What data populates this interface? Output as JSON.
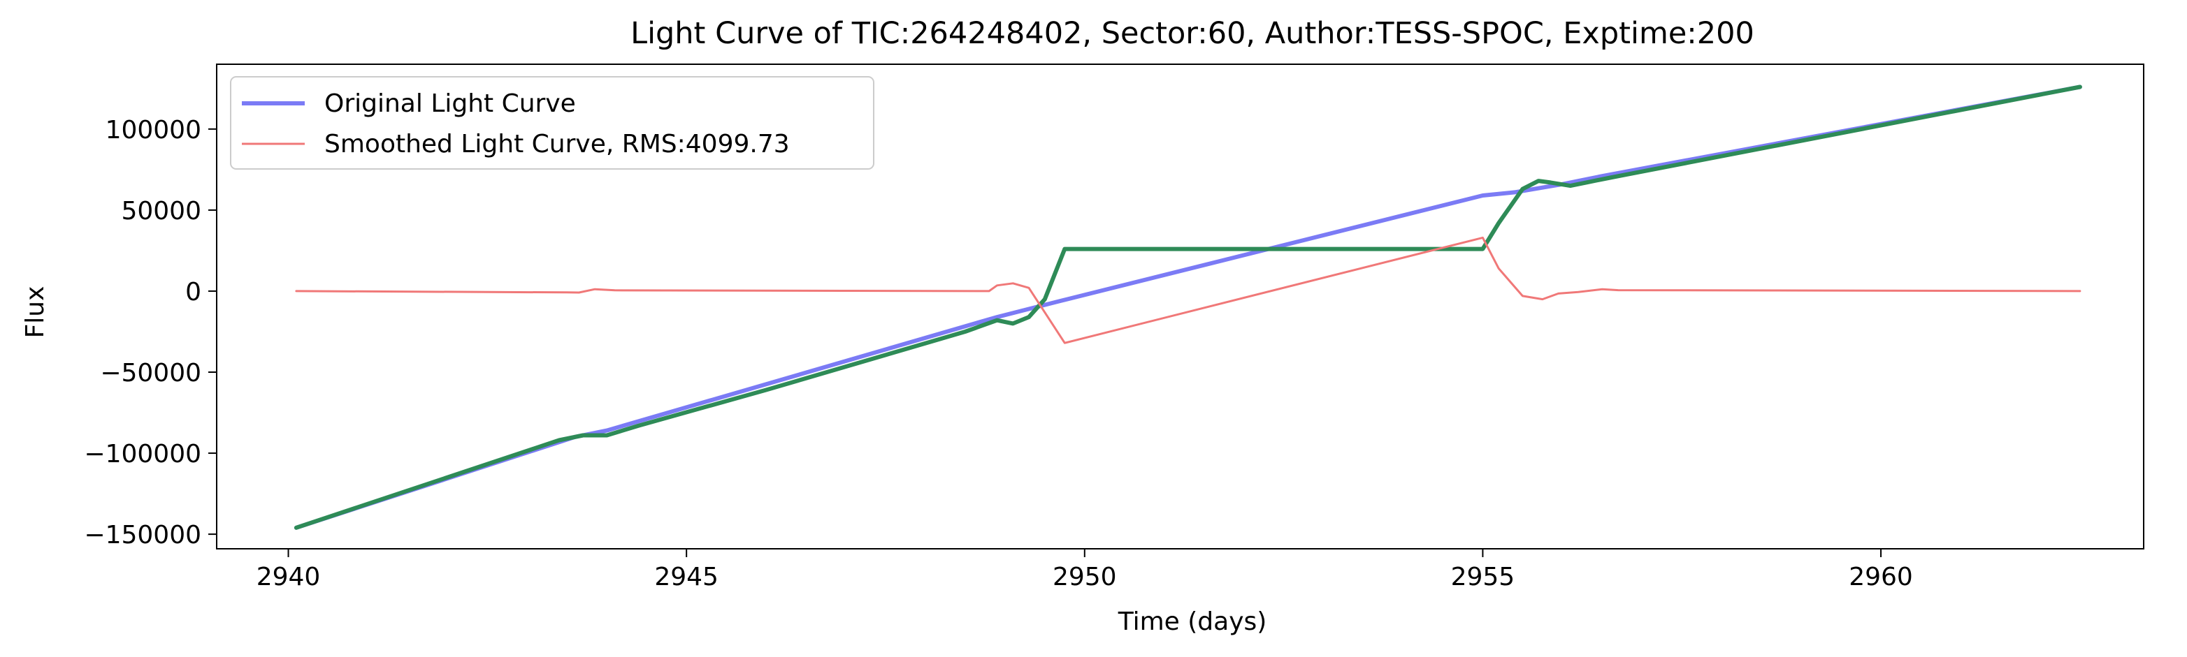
{
  "chart_data": {
    "type": "line",
    "title": "Light Curve of TIC:264248402, Sector:60, Author:TESS-SPOC, Exptime:200",
    "xlabel": "Time (days)",
    "ylabel": "Flux",
    "xlim": [
      2939.1,
      2963.3
    ],
    "ylim": [
      -159000,
      140000
    ],
    "x_ticks": [
      2940,
      2945,
      2950,
      2955,
      2960
    ],
    "x_tick_labels": [
      "2940",
      "2945",
      "2950",
      "2955",
      "2960"
    ],
    "y_ticks": [
      -150000,
      -100000,
      -50000,
      0,
      50000,
      100000
    ],
    "y_tick_labels": [
      "−150000",
      "−100000",
      "−50000",
      "0",
      "50000",
      "100000"
    ],
    "grid": false,
    "legend_position": "upper-left",
    "series": [
      {
        "name": "Original Light Curve",
        "color": "#7b7bf5",
        "x": [
          2940.1,
          2943.6,
          2944.0,
          2948.9,
          2949.3,
          2949.7,
          2955.0,
          2955.4,
          2956.0,
          2956.5,
          2962.5
        ],
        "y": [
          -146000,
          -90000,
          -86000,
          -16000,
          -11000,
          -6000,
          59000,
          61000,
          66000,
          71000,
          126000
        ]
      },
      {
        "name": "",
        "color": "#2e8b57",
        "x": [
          2940.1,
          2943.4,
          2943.7,
          2944.0,
          2944.4,
          2946.0,
          2948.5,
          2948.9,
          2949.1,
          2949.3,
          2949.5,
          2949.75,
          2955.0,
          2955.2,
          2955.5,
          2955.7,
          2955.85,
          2956.1,
          2956.3,
          2956.6,
          2962.5
        ],
        "y": [
          -146000,
          -92000,
          -89000,
          -89000,
          -83000,
          -61000,
          -25000,
          -18000,
          -20000,
          -16000,
          -5000,
          26000,
          26000,
          42000,
          63000,
          68000,
          67000,
          65000,
          67000,
          70000,
          126000
        ]
      },
      {
        "name": "Smoothed Light Curve, RMS:4099.73",
        "color": "#f07878",
        "x": [
          2940.1,
          2943.5,
          2943.65,
          2943.85,
          2944.1,
          2948.8,
          2948.9,
          2949.1,
          2949.3,
          2949.75,
          2955.0,
          2955.2,
          2955.5,
          2955.75,
          2955.95,
          2956.2,
          2956.5,
          2956.7,
          2962.5
        ],
        "y": [
          0,
          -800,
          -900,
          1200,
          500,
          0,
          3500,
          4800,
          2000,
          -32000,
          33000,
          14000,
          -3000,
          -5000,
          -1500,
          -600,
          1200,
          600,
          0
        ]
      }
    ]
  }
}
